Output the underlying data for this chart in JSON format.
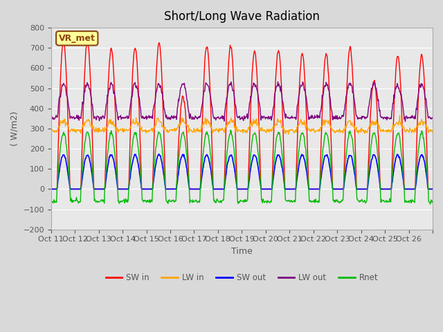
{
  "title": "Short/Long Wave Radiation",
  "xlabel": "Time",
  "ylabel": "( W/m2)",
  "ylim": [
    -200,
    800
  ],
  "yticks": [
    -200,
    -100,
    0,
    100,
    200,
    300,
    400,
    500,
    600,
    700,
    800
  ],
  "station_label": "VR_met",
  "x_tick_labels": [
    "Oct 11",
    "Oct 12",
    "Oct 13",
    "Oct 14",
    "Oct 15",
    "Oct 16",
    "Oct 17",
    "Oct 18",
    "Oct 19",
    "Oct 20",
    "Oct 21",
    "Oct 22",
    "Oct 23",
    "Oct 24",
    "Oct 25",
    "Oct 26",
    ""
  ],
  "colors": {
    "SW_in": "#ff0000",
    "LW_in": "#ffa500",
    "SW_out": "#0000ff",
    "LW_out": "#800080",
    "Rnet": "#00bb00"
  },
  "legend_labels": [
    "SW in",
    "LW in",
    "SW out",
    "LW out",
    "Rnet"
  ],
  "background_color": "#d9d9d9",
  "plot_bg_color": "#e8e8e8",
  "n_days": 16,
  "SW_in_peaks": [
    730,
    730,
    700,
    700,
    720,
    460,
    710,
    710,
    680,
    690,
    670,
    670,
    700,
    540,
    660,
    660
  ],
  "LW_in_night": 290,
  "LW_in_day": 335,
  "SW_out_day": 170,
  "LW_out_night": 355,
  "LW_out_day_peak": 520,
  "Rnet_day_peak": 280,
  "Rnet_night": -60
}
